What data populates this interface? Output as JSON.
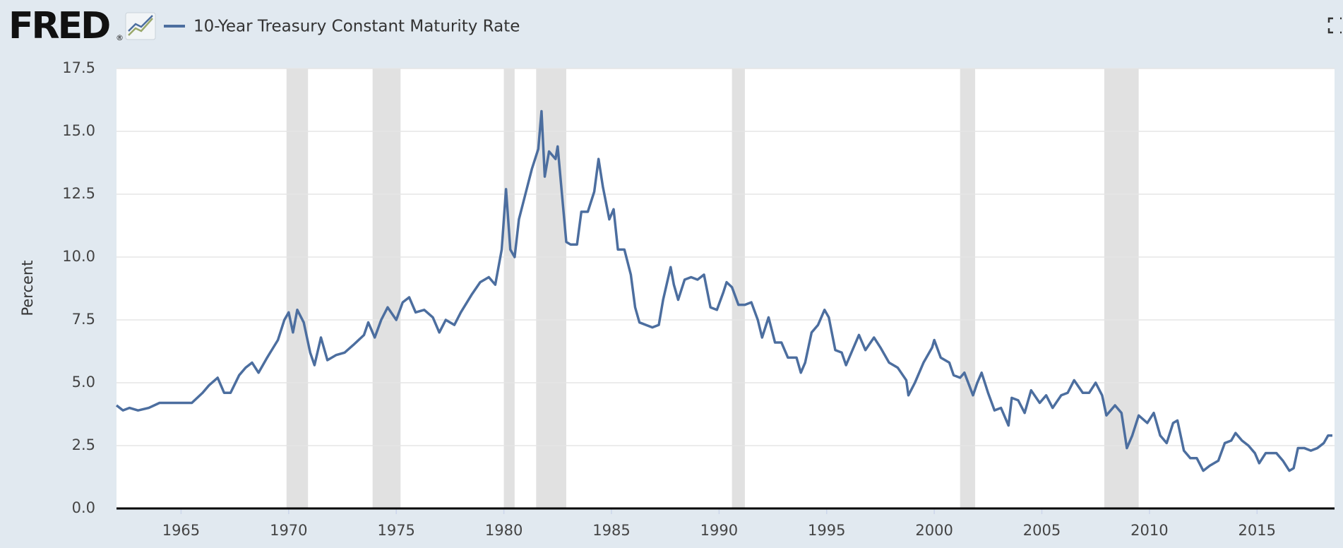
{
  "chart_data": {
    "type": "line",
    "logo": "FRED",
    "logo_mark": "®",
    "ylabel": "Percent",
    "xlim": [
      1962,
      2018.6
    ],
    "ylim": [
      0,
      17.5
    ],
    "xticks": [
      1965,
      1970,
      1975,
      1980,
      1985,
      1990,
      1995,
      2000,
      2005,
      2010,
      2015
    ],
    "yticks": [
      {
        "value": 0,
        "label": "0.0"
      },
      2.5,
      {
        "value": 5,
        "label": "5.0"
      },
      7.5,
      {
        "value": 10,
        "label": "10.0"
      },
      12.5,
      {
        "value": 15,
        "label": "15.0"
      },
      17.5
    ],
    "grid": true,
    "recession_color": "#e1e1e1",
    "recessions": [
      [
        1969.9,
        1970.9
      ],
      [
        1973.9,
        1975.2
      ],
      [
        1980.0,
        1980.5
      ],
      [
        1981.5,
        1982.9
      ],
      [
        1990.6,
        1991.2
      ],
      [
        2001.2,
        2001.9
      ],
      [
        2007.9,
        2009.5
      ]
    ],
    "x": [
      1962.0,
      1962.3,
      1962.6,
      1963.0,
      1963.5,
      1964.0,
      1964.5,
      1965.0,
      1965.5,
      1966.0,
      1966.3,
      1966.7,
      1967.0,
      1967.3,
      1967.7,
      1968.0,
      1968.3,
      1968.6,
      1969.0,
      1969.5,
      1969.8,
      1970.0,
      1970.2,
      1970.4,
      1970.7,
      1971.0,
      1971.2,
      1971.5,
      1971.8,
      1972.2,
      1972.6,
      1973.0,
      1973.5,
      1973.7,
      1974.0,
      1974.3,
      1974.6,
      1975.0,
      1975.3,
      1975.6,
      1975.9,
      1976.3,
      1976.7,
      1977.0,
      1977.3,
      1977.7,
      1978.0,
      1978.5,
      1978.9,
      1979.3,
      1979.6,
      1979.9,
      1980.1,
      1980.3,
      1980.5,
      1980.7,
      1981.0,
      1981.3,
      1981.6,
      1981.75,
      1981.9,
      1982.1,
      1982.4,
      1982.5,
      1982.7,
      1982.9,
      1983.1,
      1983.4,
      1983.6,
      1983.9,
      1984.2,
      1984.4,
      1984.6,
      1984.9,
      1985.1,
      1985.3,
      1985.6,
      1985.9,
      1986.1,
      1986.3,
      1986.6,
      1986.9,
      1987.2,
      1987.4,
      1987.75,
      1987.9,
      1988.1,
      1988.4,
      1988.7,
      1989.0,
      1989.3,
      1989.6,
      1989.9,
      1990.2,
      1990.35,
      1990.6,
      1990.9,
      1991.2,
      1991.5,
      1991.8,
      1992.0,
      1992.3,
      1992.6,
      1992.9,
      1993.2,
      1993.6,
      1993.8,
      1994.0,
      1994.3,
      1994.6,
      1994.9,
      1995.1,
      1995.4,
      1995.7,
      1995.9,
      1996.2,
      1996.5,
      1996.8,
      1997.2,
      1997.5,
      1997.9,
      1998.3,
      1998.7,
      1998.8,
      1999.1,
      1999.5,
      1999.9,
      2000.0,
      2000.3,
      2000.7,
      2000.9,
      2001.2,
      2001.4,
      2001.8,
      2002.0,
      2002.2,
      2002.5,
      2002.8,
      2003.1,
      2003.45,
      2003.6,
      2003.9,
      2004.2,
      2004.5,
      2004.9,
      2005.2,
      2005.5,
      2005.9,
      2006.2,
      2006.5,
      2006.9,
      2007.2,
      2007.5,
      2007.8,
      2008.0,
      2008.4,
      2008.7,
      2008.95,
      2009.2,
      2009.5,
      2009.9,
      2010.2,
      2010.5,
      2010.8,
      2011.1,
      2011.3,
      2011.6,
      2011.9,
      2012.2,
      2012.5,
      2012.8,
      2013.2,
      2013.5,
      2013.8,
      2014.0,
      2014.3,
      2014.6,
      2014.9,
      2015.1,
      2015.4,
      2015.7,
      2015.9,
      2016.2,
      2016.5,
      2016.7,
      2016.9,
      2017.2,
      2017.5,
      2017.8,
      2018.1,
      2018.3,
      2018.5
    ],
    "series": [
      {
        "name": "10-Year Treasury Constant Maturity Rate",
        "color": "#4c6e9f",
        "values": [
          4.1,
          3.9,
          4.0,
          3.9,
          4.0,
          4.2,
          4.2,
          4.2,
          4.2,
          4.6,
          4.9,
          5.2,
          4.6,
          4.6,
          5.3,
          5.6,
          5.8,
          5.4,
          6.0,
          6.7,
          7.5,
          7.8,
          7.0,
          7.9,
          7.4,
          6.2,
          5.7,
          6.8,
          5.9,
          6.1,
          6.2,
          6.5,
          6.9,
          7.4,
          6.8,
          7.5,
          8.0,
          7.5,
          8.2,
          8.4,
          7.8,
          7.9,
          7.6,
          7.0,
          7.5,
          7.3,
          7.8,
          8.5,
          9.0,
          9.2,
          8.9,
          10.3,
          12.7,
          10.3,
          10.0,
          11.5,
          12.5,
          13.5,
          14.3,
          15.8,
          13.2,
          14.2,
          13.9,
          14.4,
          12.5,
          10.6,
          10.5,
          10.5,
          11.8,
          11.8,
          12.6,
          13.9,
          12.8,
          11.5,
          11.9,
          10.3,
          10.3,
          9.3,
          8.0,
          7.4,
          7.3,
          7.2,
          7.3,
          8.3,
          9.6,
          8.9,
          8.3,
          9.1,
          9.2,
          9.1,
          9.3,
          8.0,
          7.9,
          8.6,
          9.0,
          8.8,
          8.1,
          8.1,
          8.2,
          7.5,
          6.8,
          7.6,
          6.6,
          6.6,
          6.0,
          6.0,
          5.4,
          5.8,
          7.0,
          7.3,
          7.9,
          7.6,
          6.3,
          6.2,
          5.7,
          6.3,
          6.9,
          6.3,
          6.8,
          6.4,
          5.8,
          5.6,
          5.1,
          4.5,
          5.0,
          5.8,
          6.4,
          6.7,
          6.0,
          5.8,
          5.3,
          5.2,
          5.4,
          4.5,
          5.0,
          5.4,
          4.6,
          3.9,
          4.0,
          3.3,
          4.4,
          4.3,
          3.8,
          4.7,
          4.2,
          4.5,
          4.0,
          4.5,
          4.6,
          5.1,
          4.6,
          4.6,
          5.0,
          4.5,
          3.7,
          4.1,
          3.8,
          2.4,
          2.9,
          3.7,
          3.4,
          3.8,
          2.9,
          2.6,
          3.4,
          3.5,
          2.3,
          2.0,
          2.0,
          1.5,
          1.7,
          1.9,
          2.6,
          2.7,
          3.0,
          2.7,
          2.5,
          2.2,
          1.8,
          2.2,
          2.2,
          2.2,
          1.9,
          1.5,
          1.6,
          2.4,
          2.4,
          2.3,
          2.4,
          2.6,
          2.9,
          2.9
        ]
      }
    ]
  }
}
